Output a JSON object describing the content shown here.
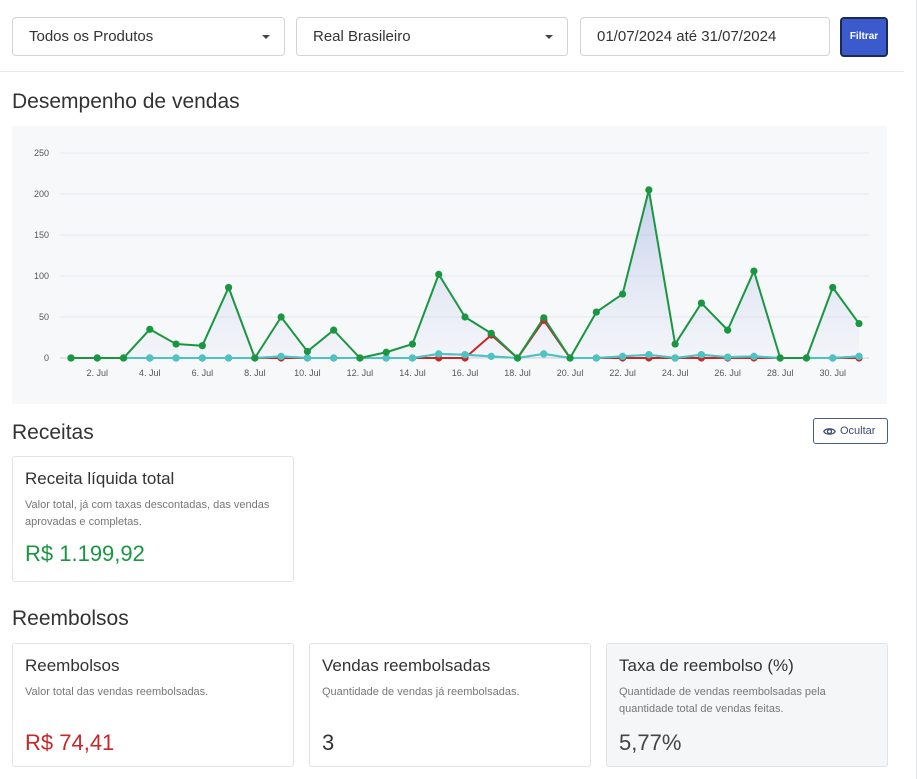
{
  "filters": {
    "product_select": "Todos os Produtos",
    "currency_select": "Real Brasileiro",
    "date_range": "01/07/2024 até 31/07/2024",
    "filter_button": "Filtrar"
  },
  "sections": {
    "performance_title": "Desempenho de vendas",
    "revenue_title": "Receitas",
    "refunds_title": "Reembolsos"
  },
  "hide_button": "Ocultar",
  "revenue_card": {
    "title": "Receita líquida total",
    "description": "Valor total, já com taxas descontadas, das vendas aprovadas e completas.",
    "value": "R$ 1.199,92"
  },
  "refund_cards": [
    {
      "title": "Reembolsos",
      "description": "Valor total das vendas reembolsadas.",
      "value": "R$ 74,41"
    },
    {
      "title": "Vendas reembolsadas",
      "description": "Quantidade de vendas já reembolsadas.",
      "value": "3"
    },
    {
      "title": "Taxa de reembolso (%)",
      "description": "Quantidade de vendas reembolsadas pela quantidade total de vendas feitas.",
      "value": "5,77%"
    }
  ],
  "colors": {
    "green": "#1a9641",
    "red": "#c62828",
    "teal": "#4cc4c4",
    "gray": "#8c9aa6",
    "accent": "#3b5bcc"
  },
  "chart_data": {
    "type": "line",
    "x": [
      1,
      2,
      3,
      4,
      5,
      6,
      7,
      8,
      9,
      10,
      11,
      12,
      13,
      14,
      15,
      16,
      17,
      18,
      19,
      20,
      21,
      22,
      23,
      24,
      25,
      26,
      27,
      28,
      29,
      30,
      31
    ],
    "xtick_labels": [
      "2. Jul",
      "4. Jul",
      "6. Jul",
      "8. Jul",
      "10. Jul",
      "12. Jul",
      "14. Jul",
      "16. Jul",
      "18. Jul",
      "20. Jul",
      "22. Jul",
      "24. Jul",
      "26. Jul",
      "28. Jul",
      "30. Jul"
    ],
    "xtick_values": [
      2,
      4,
      6,
      8,
      10,
      12,
      14,
      16,
      18,
      20,
      22,
      24,
      26,
      28,
      30
    ],
    "ylim": [
      0,
      250
    ],
    "yticks": [
      0,
      50,
      100,
      150,
      200,
      250
    ],
    "grid": true,
    "legend": "none",
    "series": [
      {
        "color": "#1a9641",
        "values": [
          0,
          0,
          0,
          35,
          17,
          15,
          86,
          0,
          50,
          8,
          34,
          0,
          7,
          17,
          102,
          50,
          30,
          0,
          49,
          0,
          56,
          78,
          205,
          17,
          67,
          34,
          106,
          0,
          0,
          86,
          42
        ]
      },
      {
        "color": "#c62828",
        "values": [
          0,
          0,
          0,
          0,
          0,
          0,
          0,
          0,
          0,
          0,
          0,
          0,
          0,
          0,
          0,
          0,
          28,
          0,
          46,
          0,
          0,
          0,
          0,
          0,
          0,
          0,
          0,
          0,
          0,
          0,
          0
        ]
      },
      {
        "color": "#8c9aa6",
        "values": [
          0,
          0,
          0,
          0,
          0,
          0,
          0,
          0,
          2,
          0,
          0,
          0,
          0,
          0,
          5,
          4,
          2,
          0,
          5,
          0,
          0,
          2,
          4,
          0,
          4,
          1,
          2,
          0,
          0,
          0,
          2
        ]
      },
      {
        "color": "#4cc4c4",
        "values": [
          0,
          0,
          0,
          0,
          0,
          0,
          0,
          0,
          2,
          0,
          0,
          0,
          0,
          0,
          5,
          4,
          2,
          0,
          5,
          0,
          0,
          2,
          4,
          0,
          4,
          1,
          2,
          0,
          0,
          0,
          2
        ]
      }
    ]
  }
}
